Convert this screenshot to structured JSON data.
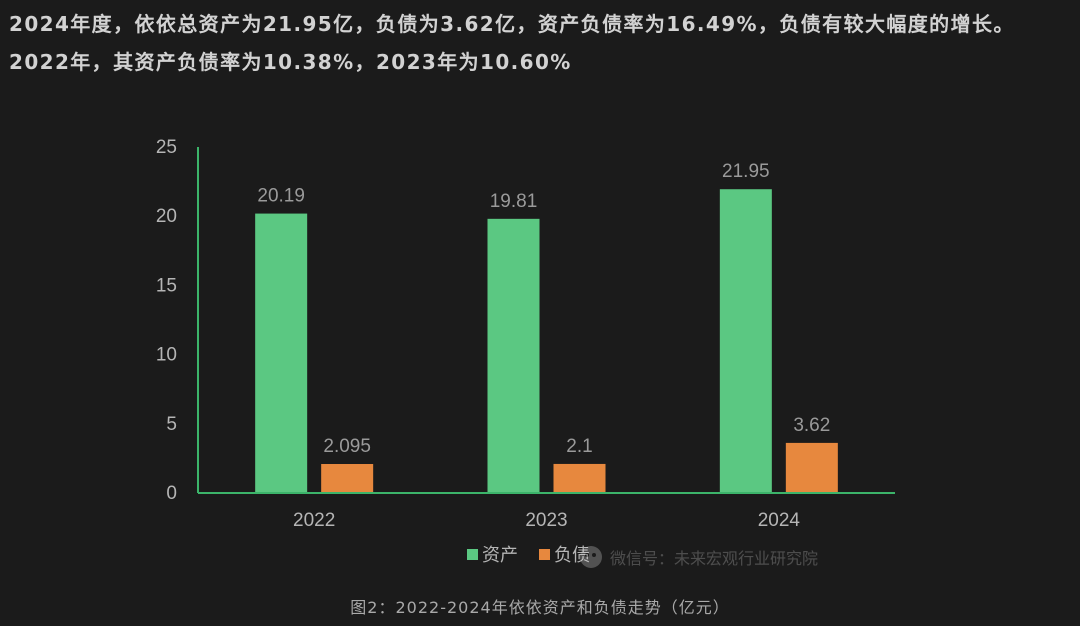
{
  "intro_text": "2024年度，依依总资产为21.95亿，负债为3.62亿，资产负债率为16.49%，负债有较大幅度的增长。2022年，其资产负债率为10.38%，2023年为10.60%",
  "caption": "图2：2022-2024年依依资产和负债走势（亿元）",
  "watermark": {
    "icon": "wechat-icon",
    "text": "微信号：未来宏观行业研究院"
  },
  "colors": {
    "background": "#1b1b1b",
    "assets": "#5bc882",
    "liabilities": "#e7883e",
    "axis": "#3cb46a",
    "text": "#d9d9d9",
    "tick_text": "#b5b5b5",
    "label_text": "#9a9a9a"
  },
  "chart_data": {
    "type": "bar",
    "categories": [
      "2022",
      "2023",
      "2024"
    ],
    "series": [
      {
        "name": "资产",
        "values": [
          20.19,
          19.81,
          21.95
        ],
        "labels": [
          "20.19",
          "19.81",
          "21.95"
        ]
      },
      {
        "name": "负债",
        "values": [
          2.095,
          2.1,
          3.62
        ],
        "labels": [
          "2.095",
          "2.1",
          "3.62"
        ]
      }
    ],
    "ylim": [
      0,
      25
    ],
    "yticks": [
      0,
      5,
      10,
      15,
      20,
      25
    ],
    "grid": false,
    "legend_position": "bottom"
  }
}
